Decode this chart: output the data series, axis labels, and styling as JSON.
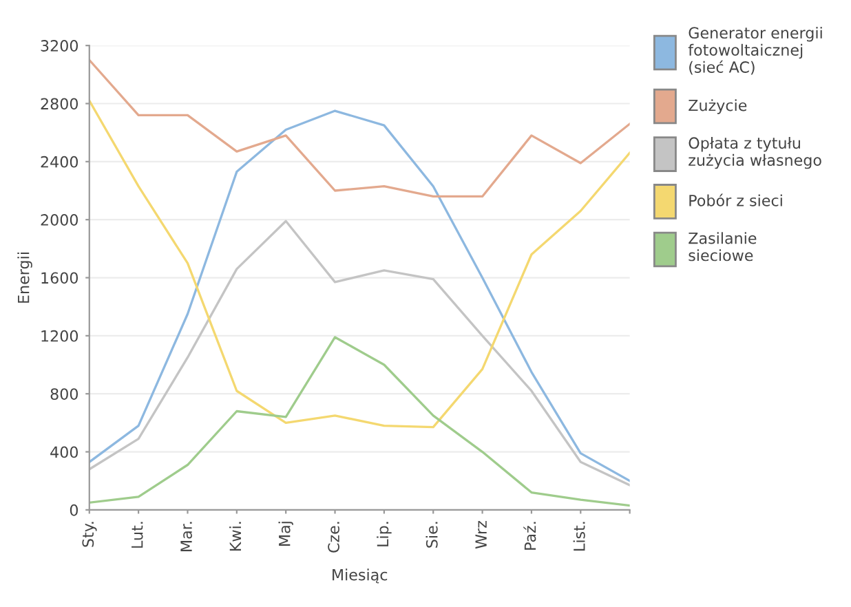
{
  "chart_data": {
    "type": "line",
    "xlabel": "Miesiąc",
    "ylabel": "Energii",
    "categories": [
      "Sty.",
      "Lut.",
      "Mar.",
      "Kwi.",
      "Maj",
      "Cze.",
      "Lip.",
      "Sie.",
      "Wrz",
      "Paź.",
      "List.",
      null
    ],
    "series": [
      {
        "name": "Generator energii fotowoltaicznej (sieć AC)",
        "color": "#8db8e0",
        "values": [
          330,
          580,
          1350,
          2330,
          2620,
          2750,
          2650,
          2230,
          1600,
          950,
          390,
          200
        ]
      },
      {
        "name": "Zużycie",
        "color": "#e3a98e",
        "values": [
          3100,
          2720,
          2720,
          2470,
          2580,
          2200,
          2230,
          2160,
          2160,
          2580,
          2390,
          2660
        ]
      },
      {
        "name": "Opłata z tytułu zużycia własnego",
        "color": "#c4c4c4",
        "values": [
          280,
          490,
          1050,
          1660,
          1990,
          1570,
          1650,
          1590,
          1200,
          820,
          330,
          170
        ]
      },
      {
        "name": "Pobór z sieci",
        "color": "#f4d870",
        "values": [
          2820,
          2230,
          1700,
          820,
          600,
          650,
          580,
          570,
          970,
          1760,
          2060,
          2460
        ]
      },
      {
        "name": "Zasilanie sieciowe",
        "color": "#9fcc8c",
        "values": [
          50,
          90,
          310,
          680,
          640,
          1190,
          1000,
          650,
          400,
          120,
          70,
          30
        ]
      }
    ],
    "ylim": [
      0,
      3200
    ],
    "yticks": [
      0,
      400,
      800,
      1200,
      1600,
      2000,
      2400,
      2800,
      3200
    ],
    "grid": "y",
    "legend": "right",
    "marker": "none",
    "line_style": "solid"
  }
}
